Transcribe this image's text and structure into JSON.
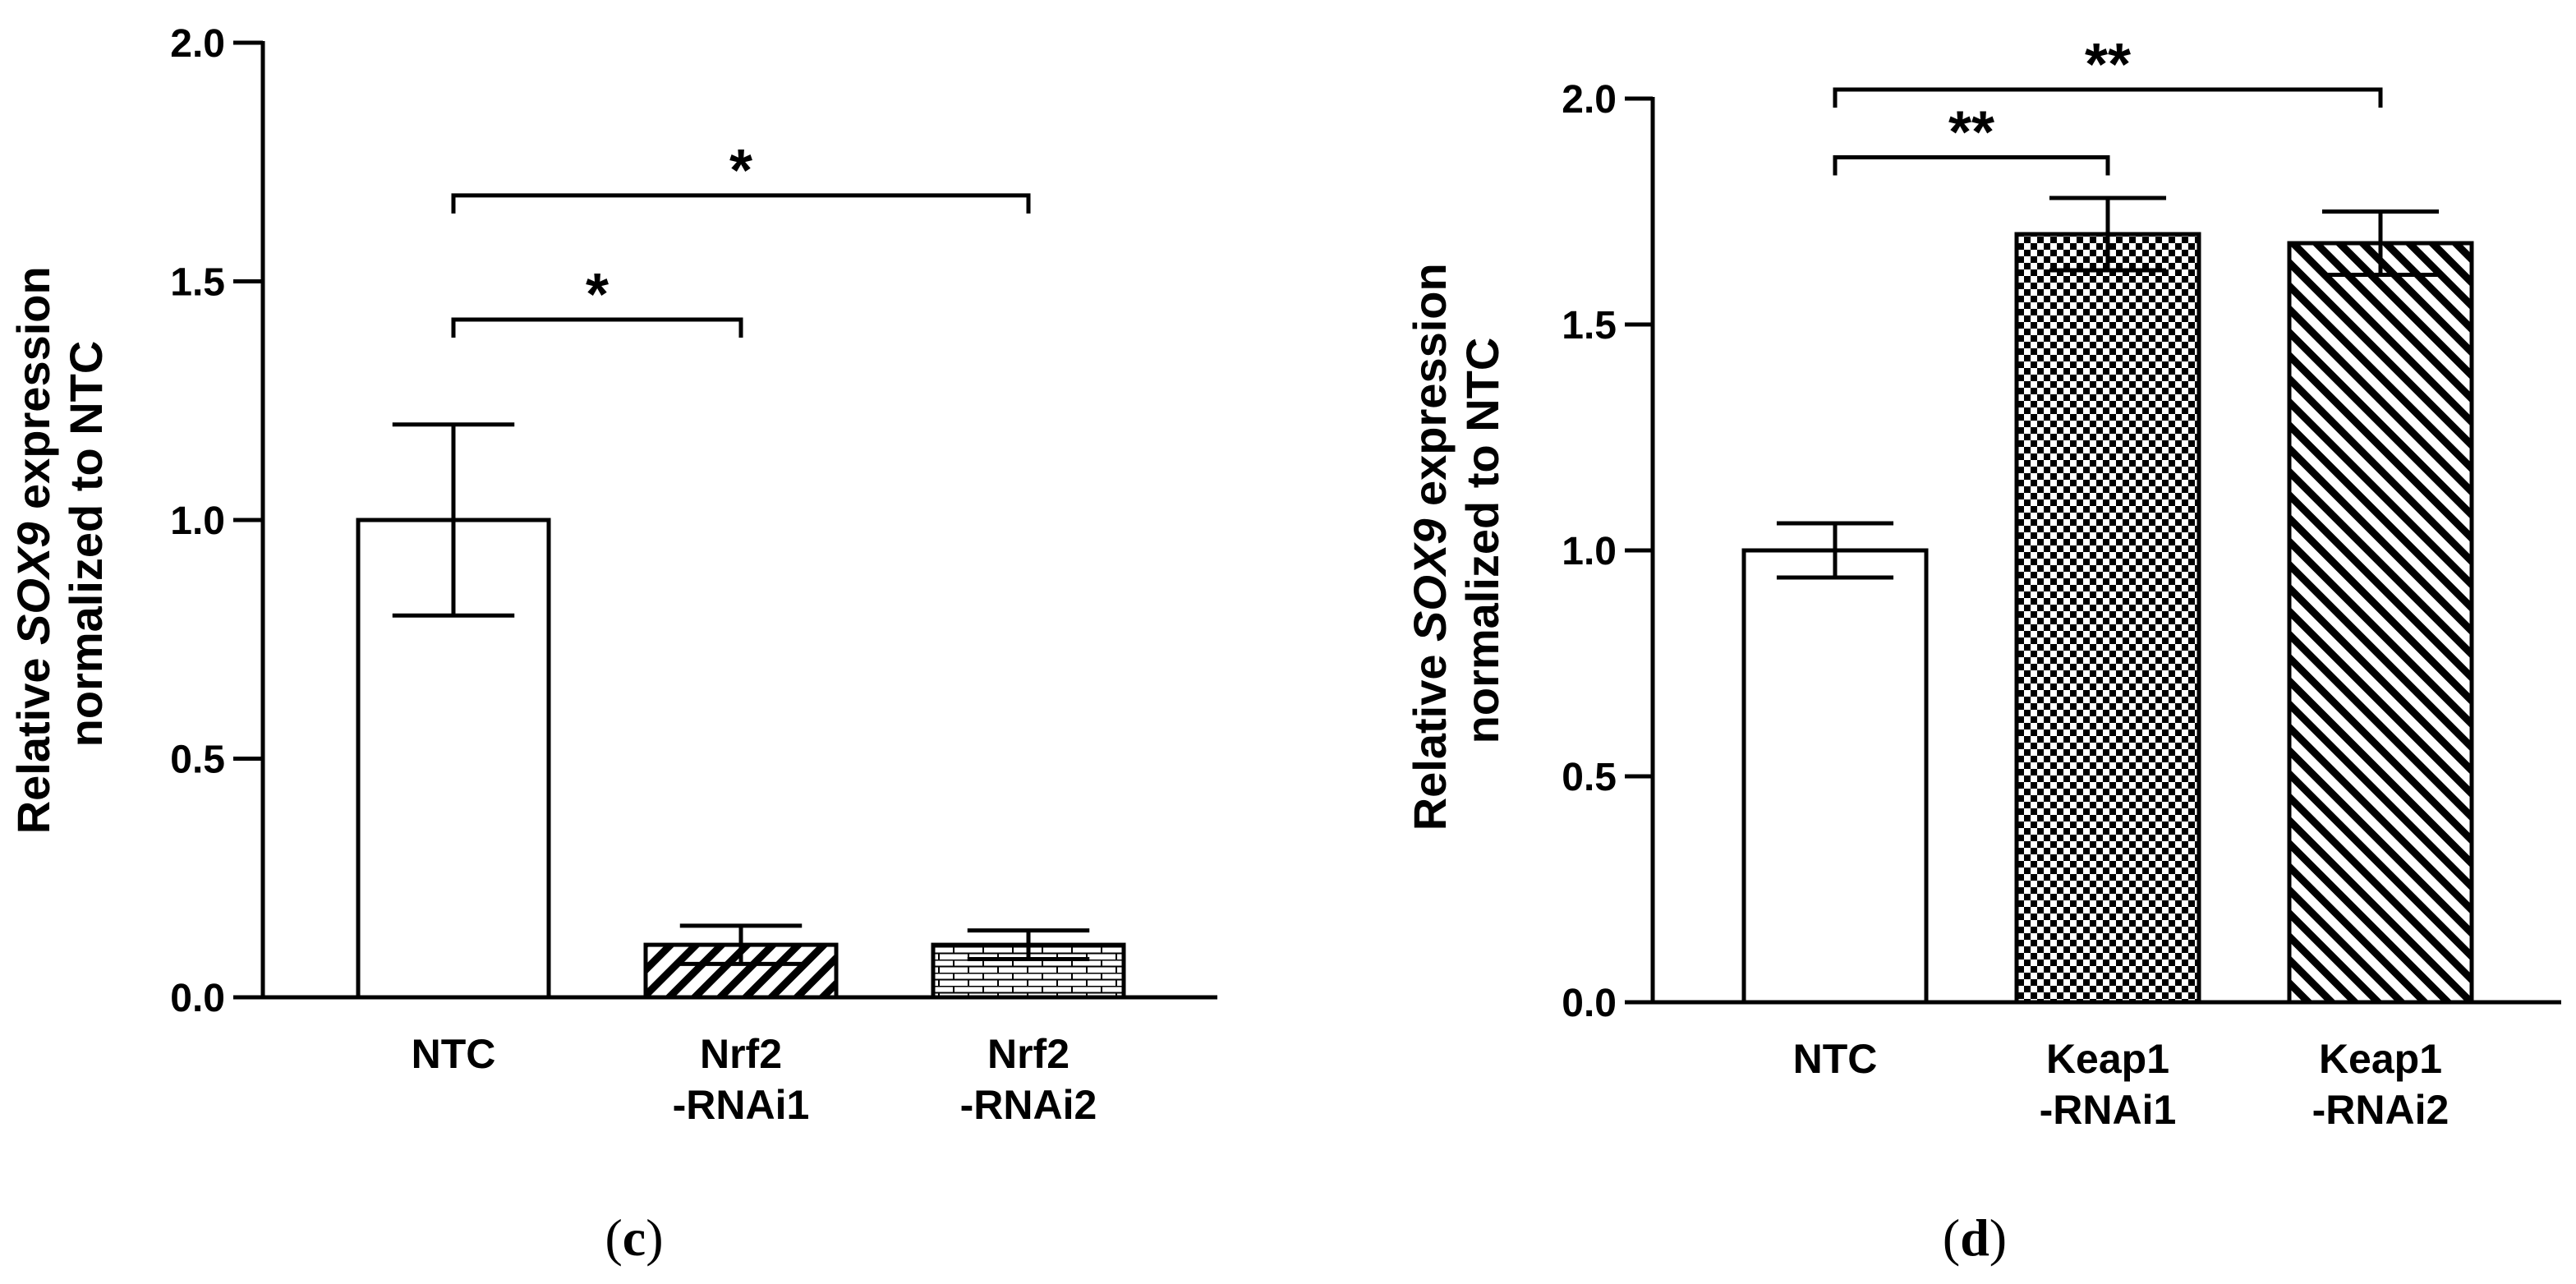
{
  "chart_data": [
    {
      "type": "bar",
      "panel": "c",
      "categories": [
        [
          "NTC"
        ],
        [
          "Nrf2",
          "-RNAi1"
        ],
        [
          "Nrf2",
          "-RNAi2"
        ]
      ],
      "values": [
        1.0,
        0.11,
        0.11
      ],
      "errors": [
        0.2,
        0.04,
        0.03
      ],
      "patterns": [
        "white",
        "diagonal",
        "brick"
      ],
      "ylim": [
        0,
        2.0
      ],
      "yticks": [
        "0.0",
        "0.5",
        "1.0",
        "1.5",
        "2.0"
      ],
      "ylabel": {
        "line1": {
          "pre": "Relative ",
          "gene": "SOX9",
          "post": " expression"
        },
        "line2": "normalized to NTC"
      },
      "comparisons": [
        {
          "from": 0,
          "to": 1,
          "y": 1.42,
          "label": "*"
        },
        {
          "from": 0,
          "to": 2,
          "y": 1.68,
          "label": "*"
        }
      ]
    },
    {
      "type": "bar",
      "panel": "d",
      "categories": [
        [
          "NTC"
        ],
        [
          "Keap1",
          "-RNAi1"
        ],
        [
          "Keap1",
          "-RNAi2"
        ]
      ],
      "values": [
        1.0,
        1.7,
        1.68
      ],
      "errors": [
        0.06,
        0.08,
        0.07
      ],
      "patterns": [
        "white",
        "checker",
        "diagonal-dense"
      ],
      "ylim": [
        0,
        2.0
      ],
      "yticks": [
        "0.0",
        "0.5",
        "1.0",
        "1.5",
        "2.0"
      ],
      "ylabel": {
        "line1": {
          "pre": "Relative ",
          "gene": "SOX9",
          "post": " expression"
        },
        "line2": "normalized to NTC"
      },
      "comparisons": [
        {
          "from": 0,
          "to": 1,
          "y": 1.87,
          "label": "**"
        },
        {
          "from": 0,
          "to": 2,
          "y": 2.02,
          "label": "**"
        }
      ]
    }
  ],
  "panel_labels": {
    "c": {
      "open": "(",
      "letter": "c",
      "close": ")"
    },
    "d": {
      "open": "(",
      "letter": "d",
      "close": ")"
    }
  }
}
